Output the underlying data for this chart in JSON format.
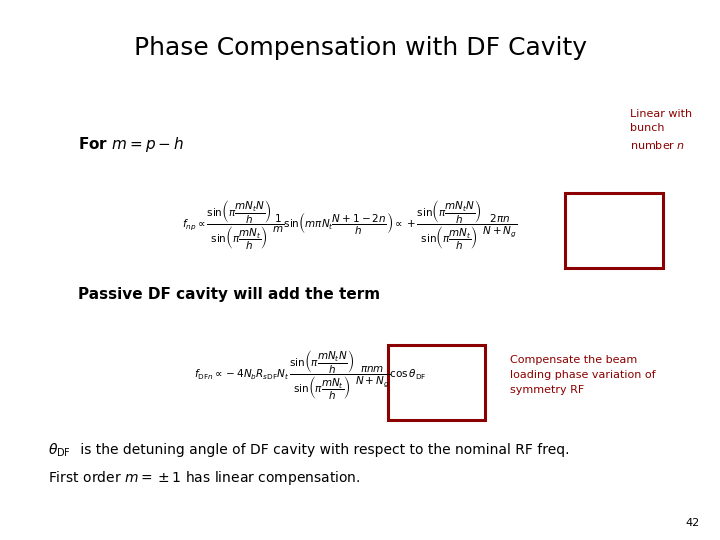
{
  "title": "Phase Compensation with DF Cavity",
  "title_fontsize": 18,
  "background_color": "#ffffff",
  "text_color": "#000000",
  "red_color": "#8b0000",
  "slide_number": "42",
  "for_m_text": "For $m = p - h$",
  "linear_label": "Linear with\nbunch\nnumber $n$",
  "passive_text": "Passive DF cavity will add the term",
  "compensate_text": "Compensate the beam\nloading phase variation of\nsymmetry RF",
  "bottom_line1_a": "$\\theta_{\\mathrm{DF}}$",
  "bottom_line1_b": " is the detuning angle of DF cavity with respect to the nominal RF freq.",
  "bottom_line2": "First order $m = \\pm1$ has linear compensation."
}
